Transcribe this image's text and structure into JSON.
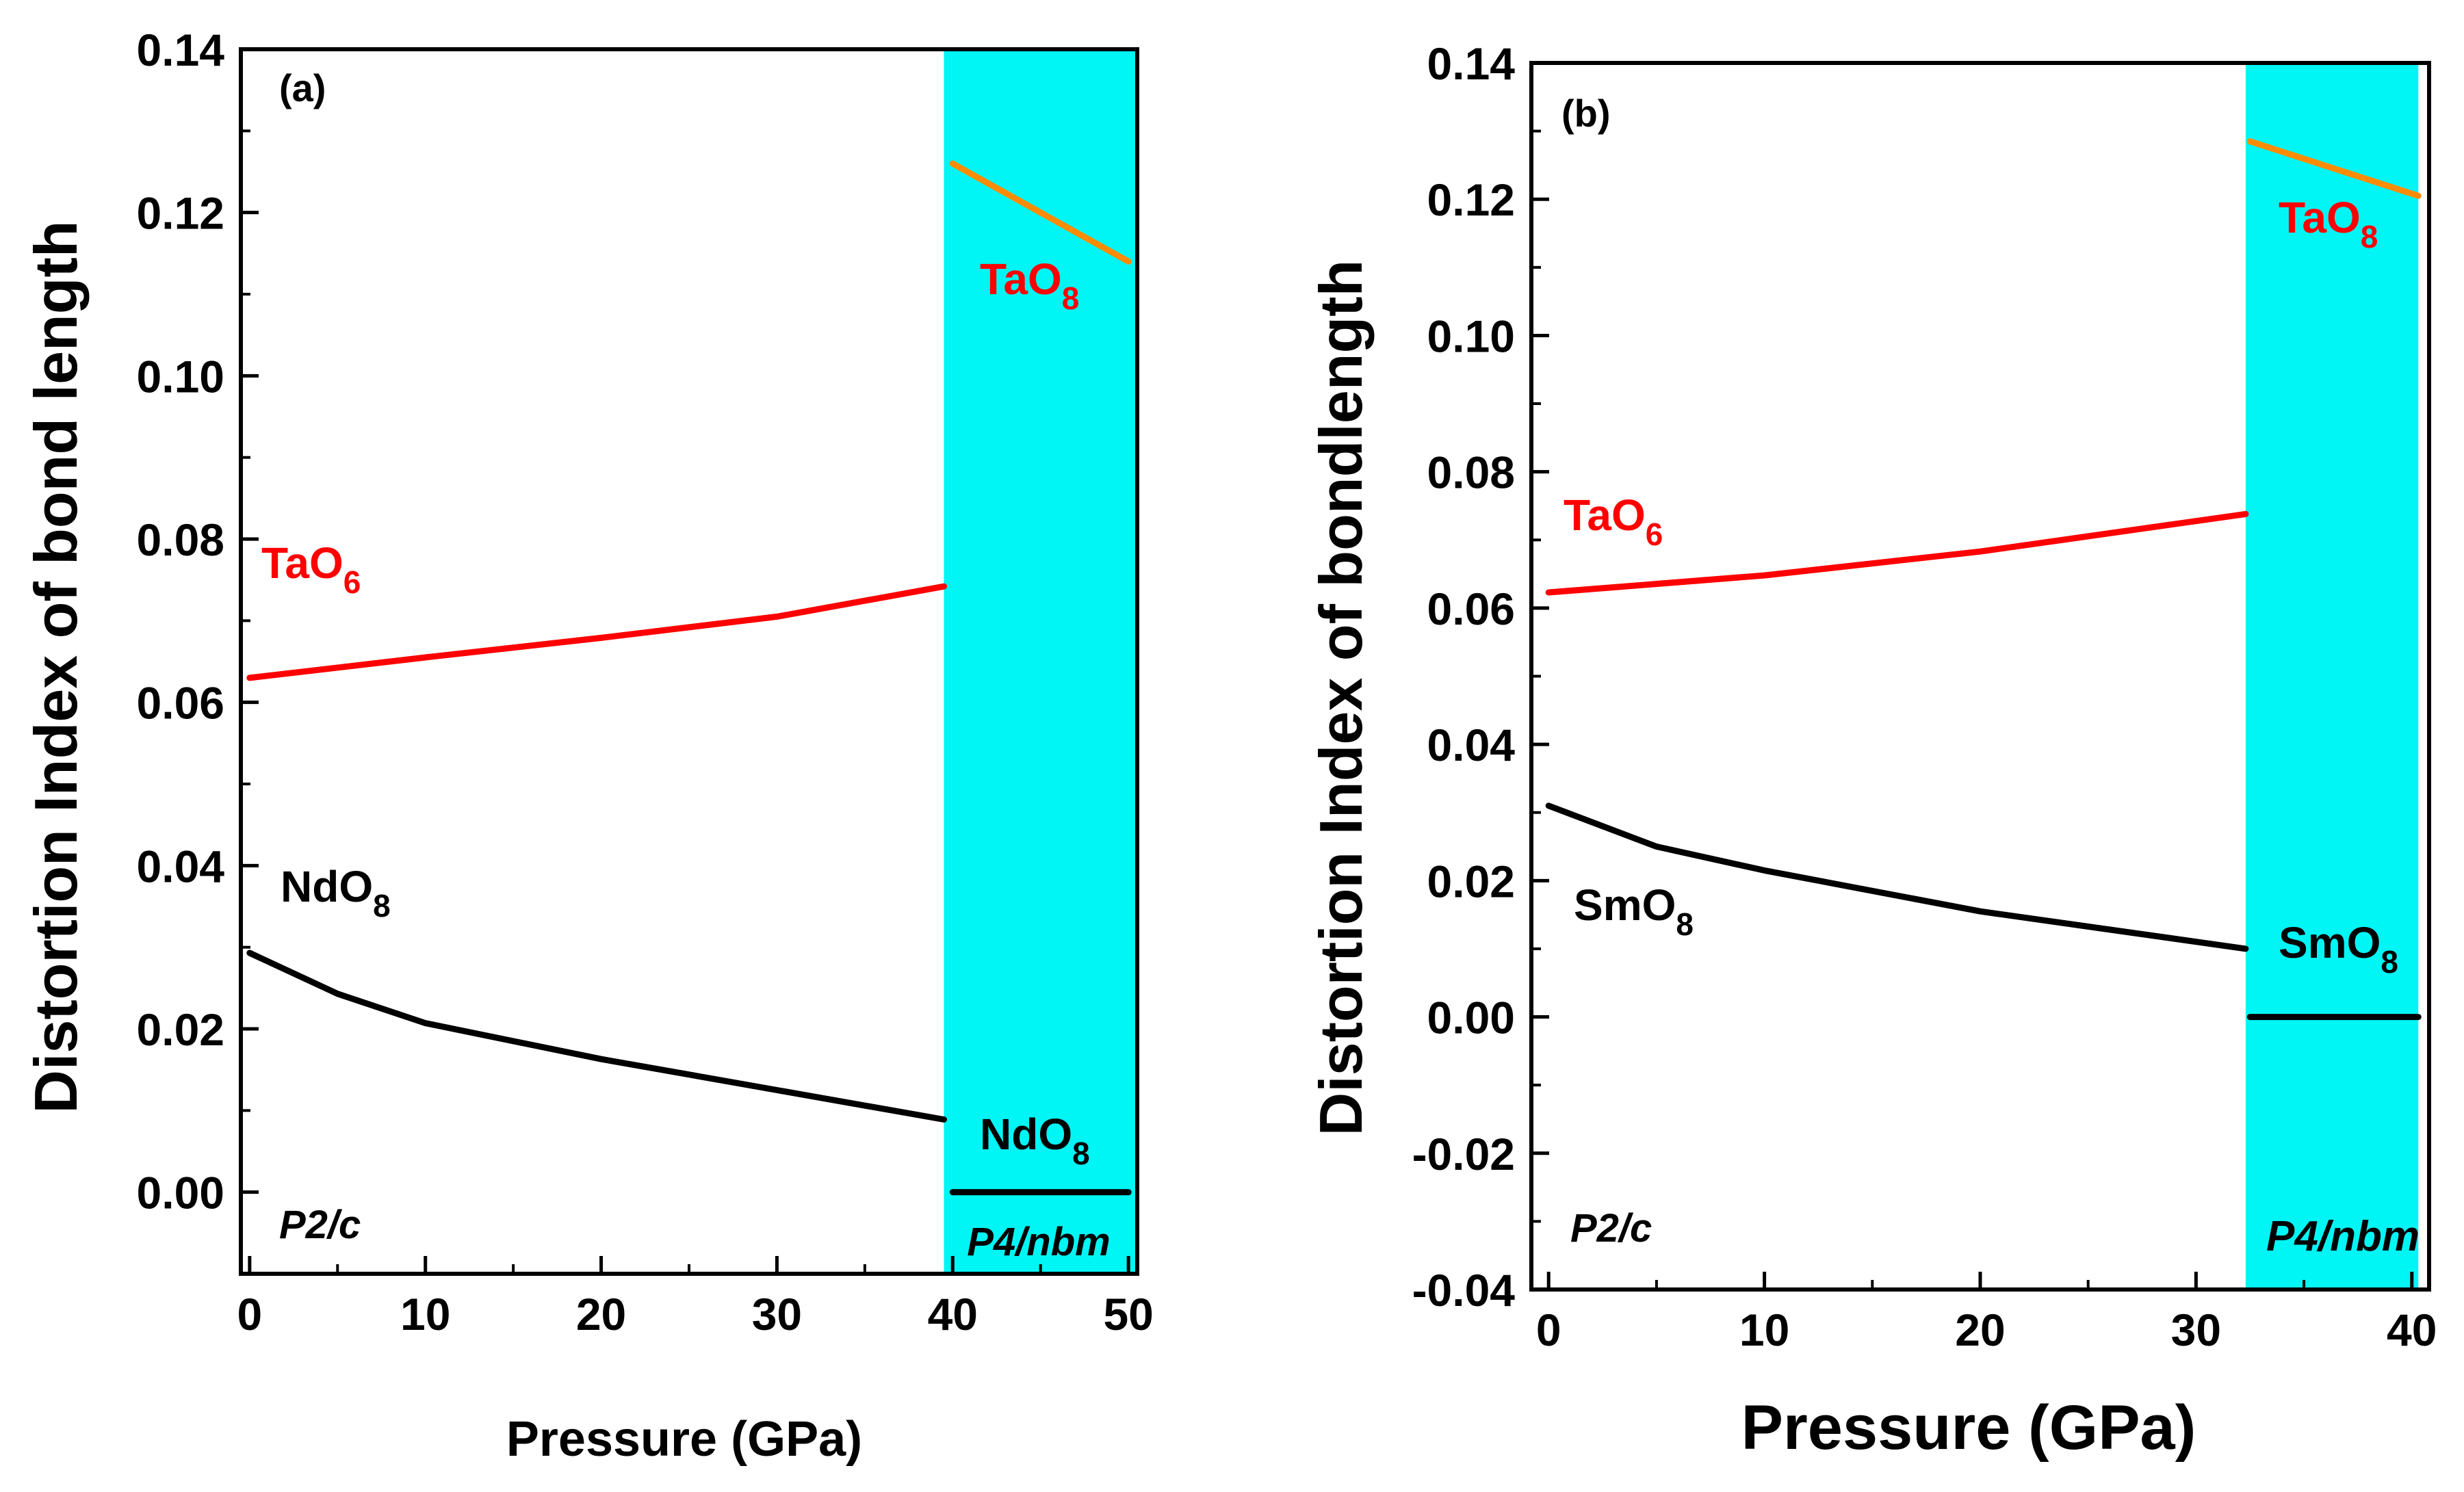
{
  "chart_data": [
    {
      "type": "line",
      "panel_label": "(a)",
      "xlabel": "Pressure (GPa)",
      "ylabel": "Distortion Index of bond length",
      "xlim": [
        -0.5,
        50.5
      ],
      "ylim": [
        -0.01,
        0.14
      ],
      "xticks": [
        "0",
        "10",
        "20",
        "30",
        "40",
        "50"
      ],
      "yticks": [
        "0.00",
        "0.02",
        "0.04",
        "0.06",
        "0.08",
        "0.10",
        "0.12",
        "0.14"
      ],
      "shaded_region": {
        "x_from": 39.5,
        "x_to": 50.5,
        "color": "#00F5F5",
        "label": "P4/nbm"
      },
      "low_pressure_phase_label": "P2/c",
      "series": [
        {
          "name": "TaO6",
          "color": "#FF0000",
          "x": [
            0,
            10,
            20,
            30,
            39.5
          ],
          "y": [
            0.063,
            0.0655,
            0.0679,
            0.0705,
            0.0742
          ]
        },
        {
          "name": "NdO8",
          "color": "#000000",
          "x": [
            0,
            5,
            10,
            20,
            30,
            39.5
          ],
          "y": [
            0.0293,
            0.0243,
            0.0207,
            0.0163,
            0.0125,
            0.0089
          ]
        },
        {
          "name": "TaO8",
          "color": "#FF8C00",
          "x": [
            40,
            50
          ],
          "y": [
            0.126,
            0.114
          ]
        },
        {
          "name": "NdO8",
          "color": "#000000",
          "x": [
            40,
            50
          ],
          "y": [
            0.0,
            0.0
          ]
        }
      ],
      "annotations": [
        {
          "text": "TaO",
          "sub": "6",
          "color": "#FF0000"
        },
        {
          "text": "NdO",
          "sub": "8",
          "color": "#000000"
        },
        {
          "text": "TaO",
          "sub": "8",
          "color": "#FF0000"
        },
        {
          "text": "NdO",
          "sub": "8",
          "color": "#000000"
        }
      ]
    },
    {
      "type": "line",
      "panel_label": "(b)",
      "xlabel": "Pressure (GPa)",
      "ylabel": "Distortion Index of bondlength",
      "xlim": [
        -0.8,
        40.8
      ],
      "ylim": [
        -0.04,
        0.14
      ],
      "xticks": [
        "0",
        "10",
        "20",
        "30",
        "40"
      ],
      "yticks": [
        "-0.04",
        "-0.02",
        "0.00",
        "0.02",
        "0.04",
        "0.06",
        "0.08",
        "0.10",
        "0.12",
        "0.14"
      ],
      "shaded_region": {
        "x_from": 32.3,
        "x_to": 40.3,
        "color": "#00F5F5",
        "label": "P4/nbm"
      },
      "low_pressure_phase_label": "P2/c",
      "series": [
        {
          "name": "TaO6",
          "color": "#FF0000",
          "x": [
            0,
            10,
            20,
            32.3
          ],
          "y": [
            0.0623,
            0.0648,
            0.0683,
            0.0738
          ]
        },
        {
          "name": "SmO8",
          "color": "#000000",
          "x": [
            0,
            5,
            10,
            20,
            32.3
          ],
          "y": [
            0.031,
            0.025,
            0.0215,
            0.0155,
            0.01
          ]
        },
        {
          "name": "TaO8",
          "color": "#FF8C00",
          "x": [
            32.5,
            40.3
          ],
          "y": [
            0.1285,
            0.1205
          ]
        },
        {
          "name": "SmO8",
          "color": "#000000",
          "x": [
            32.5,
            40.3
          ],
          "y": [
            0.0,
            0.0
          ]
        }
      ],
      "annotations": [
        {
          "text": "TaO",
          "sub": "6",
          "color": "#FF0000"
        },
        {
          "text": "SmO",
          "sub": "8",
          "color": "#000000"
        },
        {
          "text": "TaO",
          "sub": "8",
          "color": "#FF0000"
        },
        {
          "text": "SmO",
          "sub": "8",
          "color": "#000000"
        }
      ]
    }
  ]
}
